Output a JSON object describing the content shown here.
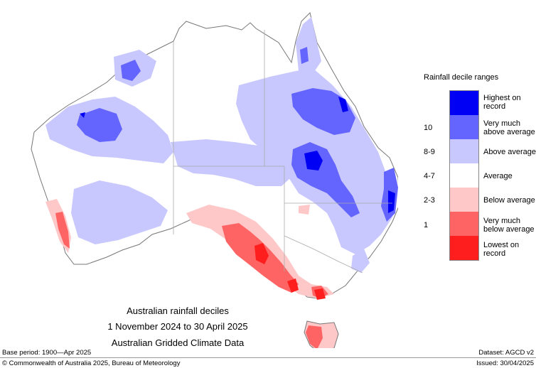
{
  "map": {
    "caption_line1": "Australian rainfall deciles",
    "caption_line2": "1 November 2024 to 30 April 2025",
    "caption_line3": "Australian Gridded Climate Data",
    "colors": {
      "highest": "#0000f5",
      "very_much_above": "#6464ff",
      "above": "#c8c8ff",
      "average": "#ffffff",
      "below": "#ffc8c8",
      "very_much_below": "#ff6464",
      "lowest": "#ff1e1e",
      "border": "#aaaaaa"
    }
  },
  "legend": {
    "title": "Rainfall decile ranges",
    "entries": [
      {
        "label_line1": "Highest on",
        "label_line2": "record",
        "range": "",
        "color": "#0000f5"
      },
      {
        "label_line1": "Very much",
        "label_line2": "above average",
        "range": "10",
        "color": "#6464ff"
      },
      {
        "label_line1": "Above average",
        "label_line2": "",
        "range": "8-9",
        "color": "#c8c8ff"
      },
      {
        "label_line1": "Average",
        "label_line2": "",
        "range": "4-7",
        "color": "#ffffff"
      },
      {
        "label_line1": "Below average",
        "label_line2": "",
        "range": "2-3",
        "color": "#ffc8c8"
      },
      {
        "label_line1": "Very much",
        "label_line2": "below average",
        "range": "1",
        "color": "#ff6464"
      },
      {
        "label_line1": "Lowest on",
        "label_line2": "record",
        "range": "",
        "color": "#ff1e1e"
      }
    ]
  },
  "footer": {
    "base_period": "Base period: 1900—Apr 2025",
    "dataset": "Dataset: AGCD v2",
    "copyright": "© Commonwealth of Australia 2025, Bureau of Meteorology",
    "issued": "Issued: 30/04/2025"
  }
}
